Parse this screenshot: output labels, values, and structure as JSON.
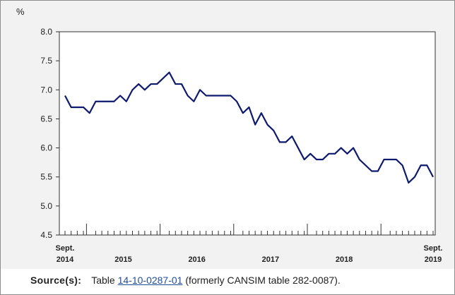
{
  "chart_data": {
    "type": "line",
    "ylabel": "%",
    "ylim": [
      4.5,
      8.0
    ],
    "yticks": [
      "8.0",
      "7.5",
      "7.0",
      "6.5",
      "6.0",
      "5.5",
      "5.0",
      "4.5"
    ],
    "x_label_groups": [
      {
        "lines": [
          "Sept.",
          "2014"
        ],
        "align": "start-sept-2014"
      },
      {
        "lines": [
          "2015"
        ],
        "align": "mid-2015"
      },
      {
        "lines": [
          "2016"
        ],
        "align": "mid-2016"
      },
      {
        "lines": [
          "2017"
        ],
        "align": "mid-2017"
      },
      {
        "lines": [
          "2018"
        ],
        "align": "mid-2018"
      },
      {
        "lines": [
          "Sept.",
          "2019"
        ],
        "align": "end-sept-2019"
      }
    ],
    "x_start": "2014-09",
    "x_end": "2019-09",
    "grid": false,
    "line_color": "#0d1a6e",
    "series": [
      {
        "values": [
          6.9,
          6.7,
          6.7,
          6.7,
          6.6,
          6.8,
          6.8,
          6.8,
          6.8,
          6.9,
          6.8,
          7.0,
          7.1,
          7.0,
          7.1,
          7.1,
          7.2,
          7.3,
          7.1,
          7.1,
          6.9,
          6.8,
          7.0,
          6.9,
          6.9,
          6.9,
          6.9,
          6.9,
          6.8,
          6.6,
          6.7,
          6.4,
          6.6,
          6.4,
          6.3,
          6.1,
          6.1,
          6.2,
          6.0,
          5.8,
          5.9,
          5.8,
          5.8,
          5.9,
          5.9,
          6.0,
          5.9,
          6.0,
          5.8,
          5.7,
          5.6,
          5.6,
          5.8,
          5.8,
          5.8,
          5.7,
          5.4,
          5.5,
          5.7,
          5.7,
          5.5
        ]
      }
    ]
  },
  "source": {
    "label": "Source(s):",
    "prefix": "Table ",
    "link_text": "14-10-0287-01",
    "suffix": " (formerly CANSIM table 282-0087)."
  }
}
